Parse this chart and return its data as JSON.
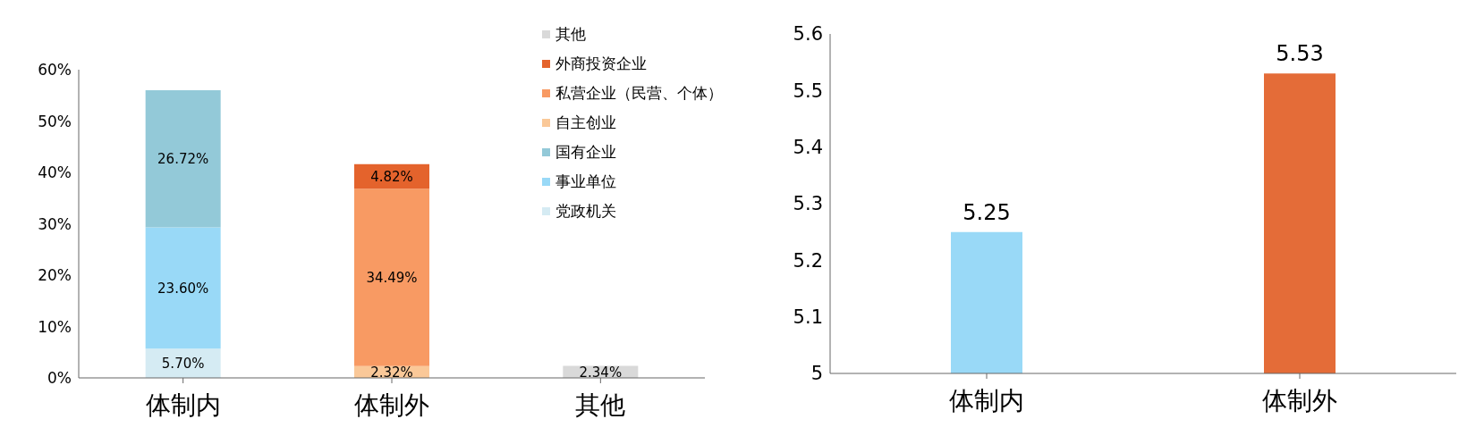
{
  "chart_data": [
    {
      "type": "bar",
      "stacked": true,
      "categories": [
        "体制内",
        "体制外",
        "其他"
      ],
      "ylim": [
        0,
        60
      ],
      "yticks": [
        {
          "value": 0,
          "label": "0%"
        },
        {
          "value": 10,
          "label": "10%"
        },
        {
          "value": 20,
          "label": "20%"
        },
        {
          "value": 30,
          "label": "30%"
        },
        {
          "value": 40,
          "label": "40%"
        },
        {
          "value": 50,
          "label": "50%"
        },
        {
          "value": 60,
          "label": "60%"
        }
      ],
      "legend": "top right",
      "series": [
        {
          "name": "党政机关",
          "color": "#d5ebf3",
          "values": [
            5.7,
            null,
            null
          ],
          "value_labels": [
            "5.70%",
            null,
            null
          ]
        },
        {
          "name": "事业单位",
          "color": "#99d9f7",
          "values": [
            23.6,
            null,
            null
          ],
          "value_labels": [
            "23.60%",
            null,
            null
          ]
        },
        {
          "name": "国有企业",
          "color": "#93c9d8",
          "values": [
            26.72,
            null,
            null
          ],
          "value_labels": [
            "26.72%",
            null,
            null
          ]
        },
        {
          "name": "自主创业",
          "color": "#fac898",
          "values": [
            null,
            2.32,
            null
          ],
          "value_labels": [
            null,
            "2.32%",
            null
          ]
        },
        {
          "name": "私营企业（民营、个体）",
          "color": "#f89a63",
          "values": [
            null,
            34.49,
            null
          ],
          "value_labels": [
            null,
            "34.49%",
            null
          ]
        },
        {
          "name": "外商投资企业",
          "color": "#e4632c",
          "values": [
            null,
            4.82,
            null
          ],
          "value_labels": [
            null,
            "4.82%",
            null
          ]
        },
        {
          "name": "其他",
          "color": "#d9d9d9",
          "values": [
            null,
            null,
            2.34
          ],
          "value_labels": [
            null,
            null,
            "2.34%"
          ]
        }
      ]
    },
    {
      "type": "bar",
      "categories": [
        "体制内",
        "体制外"
      ],
      "values": [
        5.25,
        5.53
      ],
      "colors": [
        "#99d9f7",
        "#e46c38"
      ],
      "ylim": [
        5,
        5.6
      ],
      "yticks": [
        5,
        5.1,
        5.2,
        5.3,
        5.4,
        5.5,
        5.6
      ],
      "data_labels": true
    }
  ]
}
